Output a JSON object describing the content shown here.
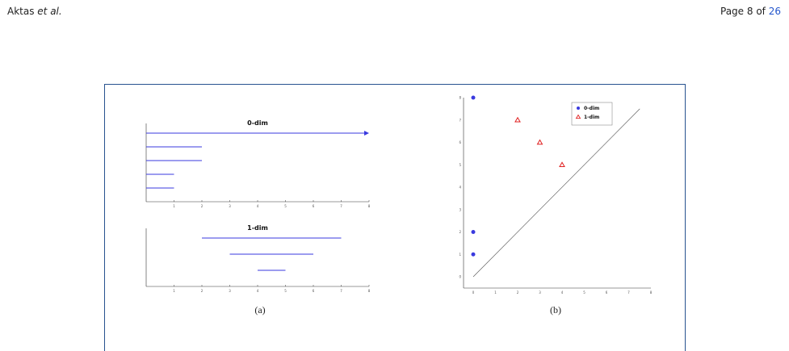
{
  "header": {
    "author": "Aktas",
    "etal": "et al.",
    "page_prefix": "Page 8 of",
    "page_total": "26"
  },
  "figure": {
    "caption_a": "(a)",
    "caption_b": "(b)"
  },
  "chart_data": [
    {
      "type": "barcode",
      "panel": "a-top",
      "title": "0-dim",
      "xlim": [
        0,
        8
      ],
      "xticks": [
        1,
        2,
        3,
        4,
        5,
        6,
        7,
        8
      ],
      "intervals": [
        {
          "start": 0,
          "end": 8,
          "infinite": true
        },
        {
          "start": 0,
          "end": 2
        },
        {
          "start": 0,
          "end": 2
        },
        {
          "start": 0,
          "end": 1
        },
        {
          "start": 0,
          "end": 1
        }
      ],
      "color": "#3a3adf"
    },
    {
      "type": "barcode",
      "panel": "a-bottom",
      "title": "1-dim",
      "xlim": [
        0,
        8
      ],
      "xticks": [
        1,
        2,
        3,
        4,
        5,
        6,
        7,
        8
      ],
      "intervals": [
        {
          "start": 2,
          "end": 7
        },
        {
          "start": 3,
          "end": 6
        },
        {
          "start": 4,
          "end": 5
        }
      ],
      "color": "#3a3adf"
    },
    {
      "type": "scatter",
      "panel": "b",
      "xlim": [
        0,
        8
      ],
      "ylim": [
        0,
        8
      ],
      "xticks": [
        0,
        1,
        2,
        3,
        4,
        5,
        6,
        7,
        8
      ],
      "yticks": [
        0,
        1,
        2,
        3,
        4,
        5,
        6,
        7,
        8
      ],
      "diagonal": true,
      "legend_position": "top-right",
      "series": [
        {
          "name": "0-dim",
          "marker": "circle",
          "color": "#3a3adf",
          "points": [
            [
              0,
              8
            ],
            [
              0,
              2
            ],
            [
              0,
              1
            ]
          ]
        },
        {
          "name": "1-dim",
          "marker": "triangle",
          "color": "#e02020",
          "points": [
            [
              2,
              7
            ],
            [
              3,
              6
            ],
            [
              4,
              5
            ]
          ]
        }
      ]
    }
  ]
}
